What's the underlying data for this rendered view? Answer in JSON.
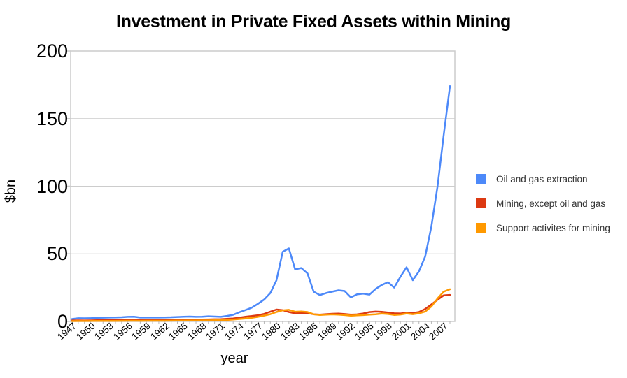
{
  "chart_data": {
    "type": "line",
    "title": "Investment in Private Fixed Assets within Mining",
    "xlabel": "year",
    "ylabel": "$bn",
    "ylim": [
      0,
      200
    ],
    "yticks": [
      0,
      50,
      100,
      150,
      200
    ],
    "xtick_labels": [
      "1947",
      "1950",
      "1953",
      "1956",
      "1959",
      "1962",
      "1965",
      "1968",
      "1971",
      "1974",
      "1977",
      "1980",
      "1983",
      "1986",
      "1989",
      "1992",
      "1995",
      "1998",
      "2001",
      "2004",
      "2007"
    ],
    "grid": "horizontal",
    "legend_position": "right",
    "axis_color": "#cccccc",
    "tick_color": "#b7b7b7",
    "x": [
      1947,
      1948,
      1949,
      1950,
      1951,
      1952,
      1953,
      1954,
      1955,
      1956,
      1957,
      1958,
      1959,
      1960,
      1961,
      1962,
      1963,
      1964,
      1965,
      1966,
      1967,
      1968,
      1969,
      1970,
      1971,
      1972,
      1973,
      1974,
      1975,
      1976,
      1977,
      1978,
      1979,
      1980,
      1981,
      1982,
      1983,
      1984,
      1985,
      1986,
      1987,
      1988,
      1989,
      1990,
      1991,
      1992,
      1993,
      1994,
      1995,
      1996,
      1997,
      1998,
      1999,
      2000,
      2001,
      2002,
      2003,
      2004,
      2005,
      2006,
      2007,
      2008
    ],
    "series": [
      {
        "name": "Oil and gas extraction",
        "color": "#4d89f9",
        "values": [
          1.8,
          2.4,
          2.3,
          2.4,
          2.7,
          2.8,
          2.9,
          3,
          3.1,
          3.4,
          3.5,
          2.9,
          3,
          2.9,
          2.9,
          3,
          3.1,
          3.3,
          3.5,
          3.6,
          3.4,
          3.5,
          3.8,
          3.6,
          3.4,
          4.1,
          4.9,
          6.8,
          8.4,
          10.2,
          13,
          16.2,
          21,
          30.5,
          51.5,
          54,
          38.5,
          39.5,
          35.5,
          22,
          19.5,
          21,
          22,
          23,
          22.5,
          17.8,
          20,
          20.5,
          19.8,
          24,
          27,
          29,
          25,
          33,
          40,
          30.5,
          37,
          48,
          70,
          100,
          138,
          174
        ]
      },
      {
        "name": "Mining, except oil and gas",
        "color": "#dc3912",
        "values": [
          0.7,
          0.8,
          0.7,
          0.8,
          0.9,
          0.9,
          0.9,
          0.9,
          1,
          1.1,
          1.1,
          1,
          1,
          1,
          1,
          1,
          1.1,
          1.2,
          1.3,
          1.4,
          1.4,
          1.4,
          1.5,
          1.6,
          1.7,
          1.9,
          2.2,
          2.8,
          3.5,
          4,
          4.6,
          5.6,
          7.2,
          8.8,
          8.3,
          7,
          6,
          6.4,
          6.2,
          5.3,
          5,
          5.4,
          5.7,
          5.8,
          5.5,
          5,
          5.2,
          5.9,
          6.9,
          7.3,
          7.1,
          6.6,
          6,
          5.9,
          6.4,
          6.2,
          7,
          9.2,
          12.5,
          16,
          19.3,
          19.6
        ]
      },
      {
        "name": "Support activites for mining",
        "color": "#ff9900",
        "values": [
          0.25,
          0.3,
          0.3,
          0.35,
          0.4,
          0.4,
          0.4,
          0.4,
          0.45,
          0.5,
          0.5,
          0.45,
          0.5,
          0.5,
          0.5,
          0.5,
          0.55,
          0.6,
          0.65,
          0.7,
          0.7,
          0.75,
          0.8,
          0.9,
          1,
          1.1,
          1.4,
          1.8,
          2.2,
          2.7,
          3.4,
          4.3,
          5.4,
          7,
          8.2,
          8.6,
          7.2,
          7.4,
          7,
          5.3,
          4.8,
          5,
          5.2,
          5,
          4.7,
          4.3,
          4.5,
          4.7,
          5,
          5.3,
          5.8,
          5.5,
          4.8,
          5.1,
          5.9,
          5.4,
          6,
          7.3,
          11,
          17,
          22,
          23.8
        ]
      }
    ]
  }
}
